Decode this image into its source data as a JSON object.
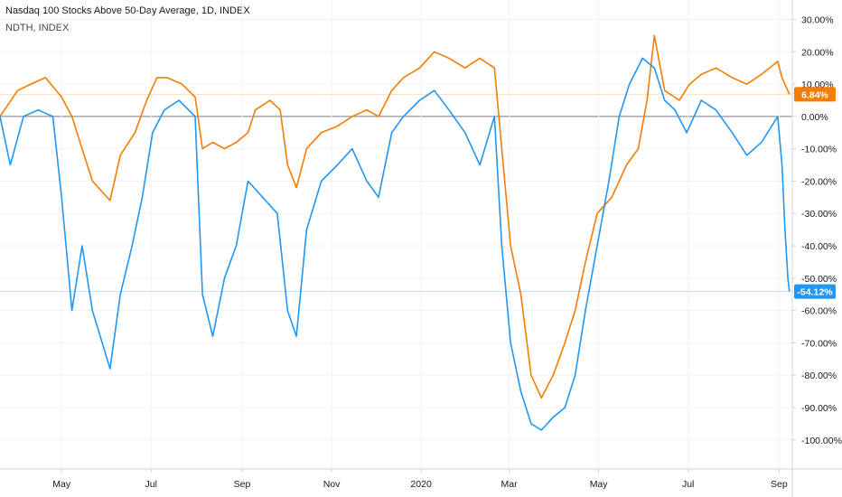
{
  "chart_data": {
    "type": "line",
    "title": "Nasdaq 100 Stocks Above 50-Day Average, 1D, INDEX",
    "subtitle": "NDTH, INDEX",
    "x_tick_labels": [
      "May",
      "Jul",
      "Sep",
      "Nov",
      "2020",
      "Mar",
      "May",
      "Jul",
      "Sep"
    ],
    "y_tick_labels": [
      "30.00%",
      "20.00%",
      "10.00%",
      "0.00%",
      "-10.00%",
      "-20.00%",
      "-30.00%",
      "-40.00%",
      "-50.00%",
      "-60.00%",
      "-70.00%",
      "-80.00%",
      "-90.00%",
      "-100.00%"
    ],
    "y_ticks": [
      30,
      20,
      10,
      0,
      -10,
      -20,
      -30,
      -40,
      -50,
      -60,
      -70,
      -80,
      -90,
      -100
    ],
    "ylim": [
      -109,
      36
    ],
    "x_label_positions": [
      "2019-05",
      "2019-07",
      "2019-09",
      "2019-11",
      "2020-01",
      "2020-03",
      "2020-05",
      "2020-07",
      "2020-09"
    ],
    "x_start": "2019-03-20",
    "x_end": "2020-09-10",
    "zero_line": 0,
    "grid": true,
    "series": [
      {
        "name": "",
        "color": "#f57c00",
        "last_value_label": "6.84%",
        "points": [
          [
            "2019-03-20",
            0
          ],
          [
            "2019-04-01",
            8
          ],
          [
            "2019-04-10",
            10
          ],
          [
            "2019-04-20",
            12
          ],
          [
            "2019-05-01",
            6
          ],
          [
            "2019-05-08",
            0
          ],
          [
            "2019-05-15",
            -10
          ],
          [
            "2019-05-22",
            -20
          ],
          [
            "2019-06-03",
            -26
          ],
          [
            "2019-06-10",
            -12
          ],
          [
            "2019-06-20",
            -5
          ],
          [
            "2019-06-28",
            5
          ],
          [
            "2019-07-05",
            12
          ],
          [
            "2019-07-12",
            12
          ],
          [
            "2019-07-22",
            10
          ],
          [
            "2019-07-31",
            6
          ],
          [
            "2019-08-05",
            -10
          ],
          [
            "2019-08-12",
            -8
          ],
          [
            "2019-08-20",
            -10
          ],
          [
            "2019-08-28",
            -8
          ],
          [
            "2019-09-05",
            -5
          ],
          [
            "2019-09-10",
            2
          ],
          [
            "2019-09-20",
            5
          ],
          [
            "2019-09-27",
            2
          ],
          [
            "2019-10-02",
            -15
          ],
          [
            "2019-10-08",
            -22
          ],
          [
            "2019-10-15",
            -10
          ],
          [
            "2019-10-25",
            -5
          ],
          [
            "2019-11-05",
            -3
          ],
          [
            "2019-11-15",
            0
          ],
          [
            "2019-11-25",
            2
          ],
          [
            "2019-12-03",
            0
          ],
          [
            "2019-12-12",
            8
          ],
          [
            "2019-12-20",
            12
          ],
          [
            "2019-12-31",
            15
          ],
          [
            "2020-01-10",
            20
          ],
          [
            "2020-01-20",
            18
          ],
          [
            "2020-01-31",
            15
          ],
          [
            "2020-02-10",
            18
          ],
          [
            "2020-02-20",
            15
          ],
          [
            "2020-02-25",
            -10
          ],
          [
            "2020-03-02",
            -40
          ],
          [
            "2020-03-09",
            -55
          ],
          [
            "2020-03-16",
            -80
          ],
          [
            "2020-03-23",
            -87
          ],
          [
            "2020-03-31",
            -80
          ],
          [
            "2020-04-08",
            -70
          ],
          [
            "2020-04-15",
            -60
          ],
          [
            "2020-04-22",
            -45
          ],
          [
            "2020-04-30",
            -30
          ],
          [
            "2020-05-10",
            -25
          ],
          [
            "2020-05-20",
            -15
          ],
          [
            "2020-05-28",
            -10
          ],
          [
            "2020-06-03",
            5
          ],
          [
            "2020-06-08",
            25
          ],
          [
            "2020-06-15",
            8
          ],
          [
            "2020-06-25",
            5
          ],
          [
            "2020-07-02",
            10
          ],
          [
            "2020-07-10",
            13
          ],
          [
            "2020-07-20",
            15
          ],
          [
            "2020-07-31",
            12
          ],
          [
            "2020-08-10",
            10
          ],
          [
            "2020-08-20",
            13
          ],
          [
            "2020-08-31",
            17
          ],
          [
            "2020-09-03",
            12
          ],
          [
            "2020-09-08",
            6.84
          ]
        ]
      },
      {
        "name": "",
        "color": "#2196f3",
        "last_value_label": "-54.12%",
        "points": [
          [
            "2019-03-20",
            0
          ],
          [
            "2019-03-27",
            -15
          ],
          [
            "2019-04-05",
            0
          ],
          [
            "2019-04-15",
            2
          ],
          [
            "2019-04-25",
            0
          ],
          [
            "2019-05-01",
            -25
          ],
          [
            "2019-05-08",
            -60
          ],
          [
            "2019-05-15",
            -40
          ],
          [
            "2019-05-22",
            -60
          ],
          [
            "2019-06-03",
            -78
          ],
          [
            "2019-06-10",
            -55
          ],
          [
            "2019-06-18",
            -40
          ],
          [
            "2019-06-25",
            -25
          ],
          [
            "2019-07-02",
            -5
          ],
          [
            "2019-07-10",
            2
          ],
          [
            "2019-07-20",
            5
          ],
          [
            "2019-07-31",
            0
          ],
          [
            "2019-08-05",
            -55
          ],
          [
            "2019-08-12",
            -68
          ],
          [
            "2019-08-20",
            -50
          ],
          [
            "2019-08-28",
            -40
          ],
          [
            "2019-09-05",
            -20
          ],
          [
            "2019-09-15",
            -25
          ],
          [
            "2019-09-25",
            -30
          ],
          [
            "2019-10-02",
            -60
          ],
          [
            "2019-10-08",
            -68
          ],
          [
            "2019-10-15",
            -35
          ],
          [
            "2019-10-25",
            -20
          ],
          [
            "2019-11-05",
            -15
          ],
          [
            "2019-11-15",
            -10
          ],
          [
            "2019-11-25",
            -20
          ],
          [
            "2019-12-03",
            -25
          ],
          [
            "2019-12-12",
            -5
          ],
          [
            "2019-12-20",
            0
          ],
          [
            "2019-12-31",
            5
          ],
          [
            "2020-01-10",
            8
          ],
          [
            "2020-01-20",
            2
          ],
          [
            "2020-01-31",
            -5
          ],
          [
            "2020-02-10",
            -15
          ],
          [
            "2020-02-20",
            0
          ],
          [
            "2020-02-25",
            -40
          ],
          [
            "2020-03-02",
            -70
          ],
          [
            "2020-03-09",
            -85
          ],
          [
            "2020-03-16",
            -95
          ],
          [
            "2020-03-23",
            -97
          ],
          [
            "2020-03-31",
            -93
          ],
          [
            "2020-04-08",
            -90
          ],
          [
            "2020-04-15",
            -80
          ],
          [
            "2020-04-22",
            -60
          ],
          [
            "2020-04-30",
            -40
          ],
          [
            "2020-05-08",
            -20
          ],
          [
            "2020-05-15",
            0
          ],
          [
            "2020-05-22",
            10
          ],
          [
            "2020-05-31",
            18
          ],
          [
            "2020-06-08",
            15
          ],
          [
            "2020-06-15",
            5
          ],
          [
            "2020-06-22",
            2
          ],
          [
            "2020-06-30",
            -5
          ],
          [
            "2020-07-10",
            5
          ],
          [
            "2020-07-20",
            2
          ],
          [
            "2020-07-31",
            -5
          ],
          [
            "2020-08-10",
            -12
          ],
          [
            "2020-08-20",
            -8
          ],
          [
            "2020-08-31",
            0
          ],
          [
            "2020-09-03",
            -15
          ],
          [
            "2020-09-05",
            -35
          ],
          [
            "2020-09-07",
            -50
          ],
          [
            "2020-09-08",
            -54.12
          ]
        ]
      }
    ]
  },
  "colors": {
    "axis_text": "#131722",
    "grid": "#f0f3fa",
    "zero_line": "#787b86",
    "axis_border": "#d1d4dc"
  }
}
